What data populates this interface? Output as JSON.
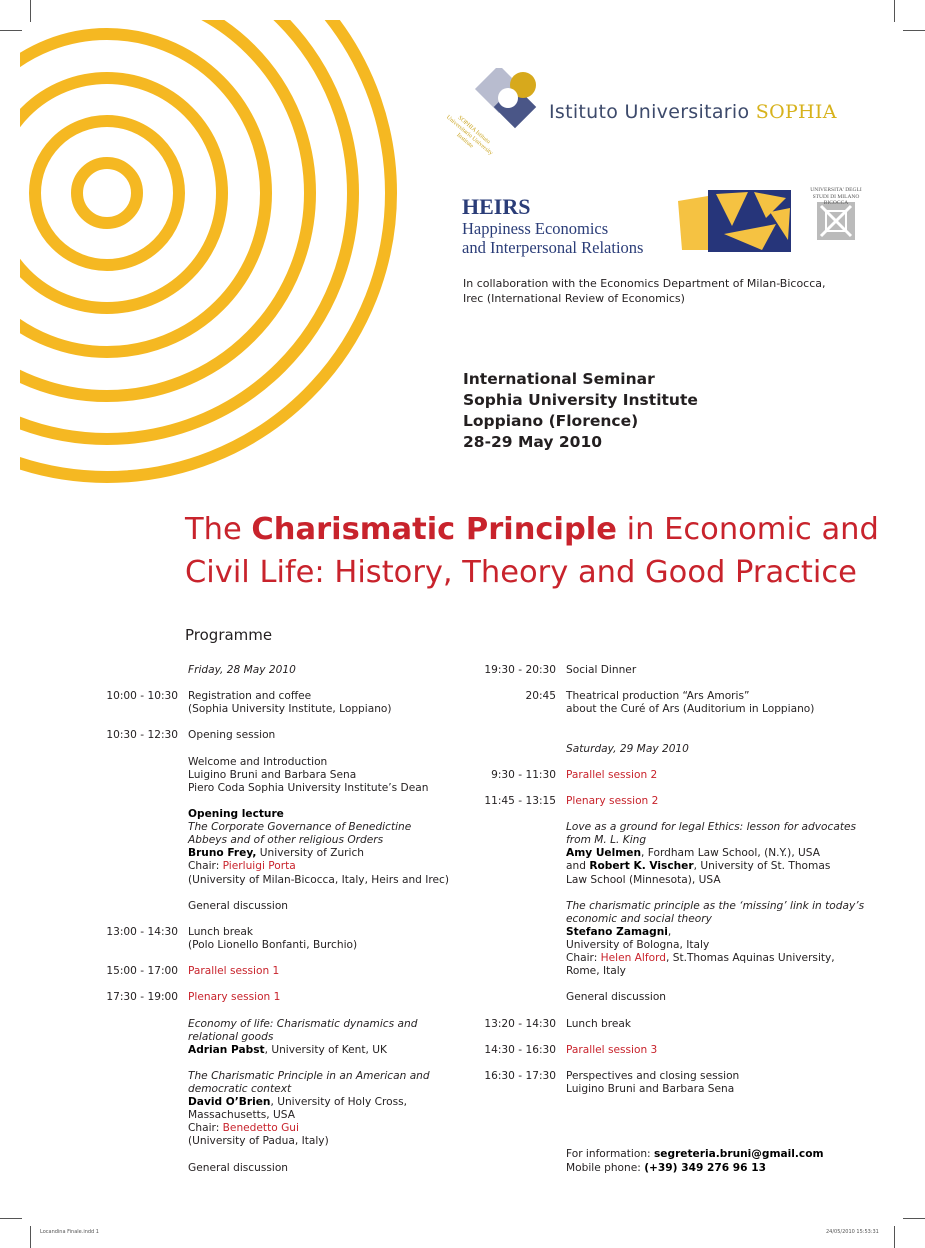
{
  "colors": {
    "accent_red": "#c8232c",
    "ring_yellow": "#f5b822",
    "navy": "#2b3d78",
    "gold": "#d7b21c"
  },
  "header": {
    "sophia_logo_text": "SOPHIA Istituto Universitario University Institute",
    "institute_name": "Istituto Universitario",
    "institute_name_highlight": "SOPHIA",
    "heirs_title": "HEIRS",
    "heirs_subtitle_1": "Happiness Economics",
    "heirs_subtitle_2": "and Interpersonal Relations",
    "bicocca_logo_text": "UNIVERSITA' DEGLI STUDI DI MILANO BICOCCA",
    "collaboration_1": "In collaboration with the Economics Department of Milan-Bicocca,",
    "collaboration_2": "Irec (International Review of Economics)"
  },
  "seminar": {
    "line1": "International Seminar",
    "line2": "Sophia University Institute",
    "line3": "Loppiano (Florence)",
    "line4": "28-29 May 2010"
  },
  "title": {
    "prefix": "The ",
    "bold": "Charismatic Principle",
    "suffix": " in Economic and",
    "line2": "Civil Life: History, Theory and Good Practice"
  },
  "programme_heading": "Programme",
  "programme": {
    "left": [
      {
        "segments": [
          [
            "Friday, 28 May 2010",
            "i"
          ]
        ]
      },
      null,
      {
        "time": "10:00 - 10:30",
        "segments": [
          [
            "Registration and coffee",
            ""
          ]
        ]
      },
      {
        "segments": [
          [
            "(Sophia University Institute, Loppiano)",
            ""
          ]
        ]
      },
      null,
      {
        "time": "10:30 - 12:30",
        "segments": [
          [
            "Opening session",
            ""
          ]
        ]
      },
      null,
      {
        "segments": [
          [
            "Welcome and Introduction",
            ""
          ]
        ]
      },
      {
        "segments": [
          [
            "Luigino Bruni and Barbara Sena",
            ""
          ]
        ]
      },
      {
        "segments": [
          [
            "Piero Coda Sophia University Institute’s Dean",
            ""
          ]
        ]
      },
      null,
      {
        "segments": [
          [
            "Opening lecture",
            "b red"
          ]
        ]
      },
      {
        "segments": [
          [
            "The Corporate Governance of Benedictine",
            "i"
          ]
        ]
      },
      {
        "segments": [
          [
            "Abbeys and of other religious Orders",
            "i"
          ]
        ]
      },
      {
        "segments": [
          [
            "Bruno Frey,",
            "b"
          ],
          [
            " University of Zurich",
            ""
          ]
        ]
      },
      {
        "segments": [
          [
            "Chair: ",
            ""
          ],
          [
            "Pierluigi Porta",
            "red"
          ]
        ]
      },
      {
        "segments": [
          [
            "(University of Milan-Bicocca, Italy, Heirs and Irec)",
            ""
          ]
        ]
      },
      null,
      {
        "segments": [
          [
            "General discussion",
            ""
          ]
        ]
      },
      null,
      {
        "time": "13:00 - 14:30",
        "segments": [
          [
            "Lunch break",
            ""
          ]
        ]
      },
      {
        "segments": [
          [
            "(Polo Lionello Bonfanti, Burchio)",
            ""
          ]
        ]
      },
      null,
      {
        "time": "15:00 - 17:00",
        "segments": [
          [
            "Parallel session 1",
            "red"
          ]
        ]
      },
      null,
      {
        "time": "17:30 - 19:00",
        "segments": [
          [
            "Plenary session 1",
            "red"
          ]
        ]
      },
      null,
      {
        "segments": [
          [
            "Economy of life: Charismatic dynamics and",
            "i"
          ]
        ]
      },
      {
        "segments": [
          [
            "relational goods",
            "i"
          ]
        ]
      },
      {
        "segments": [
          [
            "Adrian Pabst",
            "b"
          ],
          [
            ", University of Kent, UK",
            ""
          ]
        ]
      },
      null,
      {
        "segments": [
          [
            "The Charismatic Principle in an American and",
            "i"
          ]
        ]
      },
      {
        "segments": [
          [
            "democratic context",
            "i"
          ]
        ]
      },
      {
        "segments": [
          [
            "David O’Brien",
            "b"
          ],
          [
            ", University of Holy Cross,",
            ""
          ]
        ]
      },
      {
        "segments": [
          [
            "Massachusetts, USA",
            ""
          ]
        ]
      },
      {
        "segments": [
          [
            "Chair: ",
            ""
          ],
          [
            "Benedetto Gui",
            "red"
          ]
        ]
      },
      {
        "segments": [
          [
            "(University of Padua, Italy)",
            ""
          ]
        ]
      },
      null,
      {
        "segments": [
          [
            "General discussion",
            ""
          ]
        ]
      }
    ],
    "right": [
      {
        "time": "19:30 - 20:30",
        "segments": [
          [
            "Social Dinner",
            ""
          ]
        ]
      },
      null,
      {
        "time": "20:45",
        "segments": [
          [
            "Theatrical production “Ars Amoris”",
            ""
          ]
        ]
      },
      {
        "segments": [
          [
            "about the Curé of Ars (Auditorium in Loppiano)",
            ""
          ]
        ]
      },
      null,
      null,
      {
        "segments": [
          [
            "Saturday, 29 May 2010",
            "i"
          ]
        ]
      },
      null,
      {
        "time": "9:30 - 11:30",
        "segments": [
          [
            "Parallel session 2",
            "red"
          ]
        ]
      },
      null,
      {
        "time": "11:45 - 13:15",
        "segments": [
          [
            "Plenary session 2",
            "red"
          ]
        ]
      },
      null,
      {
        "segments": [
          [
            "Love as a ground for legal Ethics: lesson for advocates",
            "i"
          ]
        ]
      },
      {
        "segments": [
          [
            "from M. L.  King",
            "i"
          ]
        ]
      },
      {
        "segments": [
          [
            "Amy Uelmen",
            "b"
          ],
          [
            ", Fordham Law School, (N.Y.), USA",
            ""
          ]
        ]
      },
      {
        "segments": [
          [
            "and ",
            ""
          ],
          [
            "Robert K. Vischer",
            "b"
          ],
          [
            ", University of St. Thomas",
            ""
          ]
        ]
      },
      {
        "segments": [
          [
            "Law School (Minnesota), USA",
            ""
          ]
        ]
      },
      null,
      {
        "segments": [
          [
            "The charismatic principle as the ‘missing’ link in today’s",
            "i"
          ]
        ]
      },
      {
        "segments": [
          [
            "economic and social theory",
            "i"
          ]
        ]
      },
      {
        "segments": [
          [
            "Stefano Zamagni",
            "b"
          ],
          [
            ",",
            ""
          ]
        ]
      },
      {
        "segments": [
          [
            "University of Bologna, Italy",
            ""
          ]
        ]
      },
      {
        "segments": [
          [
            "Chair: ",
            ""
          ],
          [
            "Helen Alford",
            "red"
          ],
          [
            ", St.Thomas Aquinas University,",
            ""
          ]
        ]
      },
      {
        "segments": [
          [
            "Rome, Italy",
            ""
          ]
        ]
      },
      null,
      {
        "segments": [
          [
            "General discussion",
            ""
          ]
        ]
      },
      null,
      {
        "time": "13:20 - 14:30",
        "segments": [
          [
            "Lunch break",
            ""
          ]
        ]
      },
      null,
      {
        "time": "14:30 - 16:30",
        "segments": [
          [
            "Parallel session 3",
            "red"
          ]
        ]
      },
      null,
      {
        "time": "16:30 - 17:30",
        "segments": [
          [
            "Perspectives and closing session",
            ""
          ]
        ]
      },
      {
        "segments": [
          [
            "Luigino Bruni and Barbara Sena",
            ""
          ]
        ]
      },
      null,
      null,
      null,
      null,
      {
        "segments": [
          [
            "For information: ",
            ""
          ],
          [
            "segreteria.bruni@gmail.com",
            "b"
          ]
        ]
      },
      {
        "segments": [
          [
            "Mobile phone: ",
            ""
          ],
          [
            "(+39) 349 276 96 13",
            "b"
          ]
        ]
      }
    ]
  },
  "footer": {
    "file_name": "Locandina Finale.indd   1",
    "timestamp": "24/05/2010   15:53:31"
  }
}
